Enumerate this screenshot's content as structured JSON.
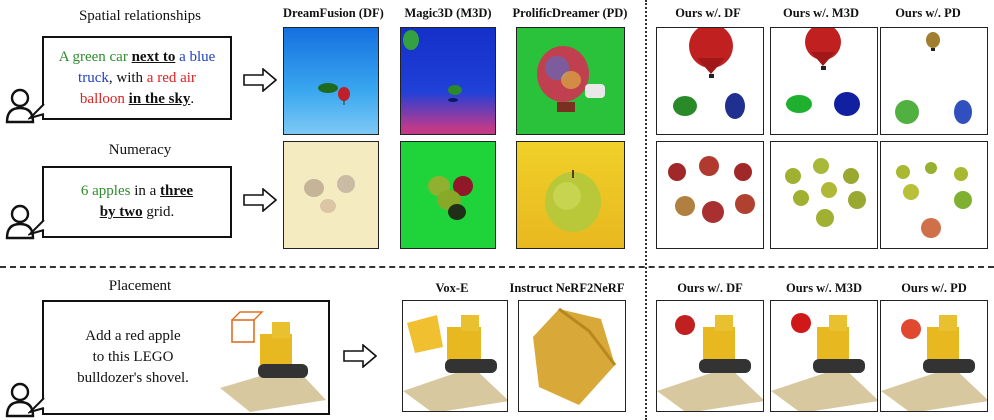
{
  "rows": {
    "spatial": {
      "label": "Spatial relationships",
      "prompt": {
        "t1": "A green car ",
        "t2": "next to",
        "t3": " a blue",
        "t4": "truck",
        "t5": ", with ",
        "t6": "a red air",
        "t7": "balloon",
        "t8": " ",
        "t9": "in the sky",
        "t10": "."
      }
    },
    "numeracy": {
      "label": "Numeracy",
      "prompt": {
        "t1": "6 apples",
        "t2": " in a ",
        "t3": "three",
        "t4": "by two",
        "t5": " grid."
      }
    },
    "placement": {
      "label": "Placement",
      "prompt": {
        "line1": "Add a red apple",
        "line2": "to this LEGO",
        "line3": "bulldozer's shovel."
      }
    }
  },
  "headers_top": {
    "df": "DreamFusion (DF)",
    "m3d": "Magic3D (M3D)",
    "pd": "ProlificDreamer (PD)",
    "ours_df": "Ours w/. DF",
    "ours_m3d": "Ours w/. M3D",
    "ours_pd": "Ours w/. PD"
  },
  "headers_bottom": {
    "voxe": "Vox-E",
    "in2n": "Instruct NeRF2NeRF",
    "ours_df": "Ours w/. DF",
    "ours_m3d": "Ours w/. M3D",
    "ours_pd": "Ours w/. PD"
  },
  "colors": {
    "green_text": "#2e8b2e",
    "blue_text": "#2040c0",
    "red_text": "#e02020",
    "df_bg": "#2a8de8",
    "m3d_bg": "#1838d8",
    "pd_bg": "#29c23a",
    "numeracy_df_bg": "#f4ecc0",
    "numeracy_m3d_bg": "#1fd43a",
    "numeracy_pd_bg": "#f1d028"
  }
}
